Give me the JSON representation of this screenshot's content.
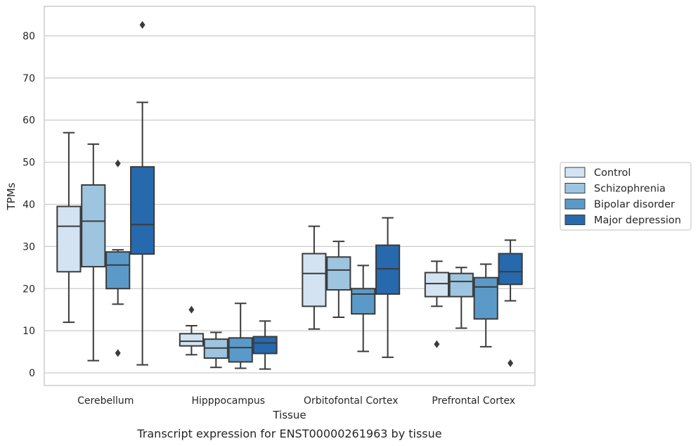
{
  "caption": "Transcript expression for ENST00000261963 by tissue",
  "chart_data": {
    "type": "box",
    "xlabel": "Tissue",
    "ylabel": "TPMs",
    "ylim": [
      -3,
      87
    ],
    "yticks": [
      0,
      10,
      20,
      30,
      40,
      50,
      60,
      70,
      80
    ],
    "grid": "horizontal",
    "legend_position": "right",
    "categories": [
      "Cerebellum",
      "Hipppocampus",
      "Orbitofontal Cortex",
      "Prefrontal Cortex"
    ],
    "series": [
      {
        "name": "Control",
        "color": "#d3e3f2",
        "boxes": [
          {
            "whislo": 12,
            "q1": 24,
            "med": 34.8,
            "q3": 39.5,
            "whishi": 57,
            "fliers": []
          },
          {
            "whislo": 4.3,
            "q1": 6.4,
            "med": 7.5,
            "q3": 9.3,
            "whishi": 11.2,
            "fliers": [
              15
            ]
          },
          {
            "whislo": 10.4,
            "q1": 15.8,
            "med": 23.6,
            "q3": 28.3,
            "whishi": 34.8,
            "fliers": []
          },
          {
            "whislo": 15.8,
            "q1": 18.1,
            "med": 21.2,
            "q3": 23.8,
            "whishi": 26.5,
            "fliers": [
              6.8
            ]
          }
        ]
      },
      {
        "name": "Schizophrenia",
        "color": "#9dc5df",
        "boxes": [
          {
            "whislo": 2.9,
            "q1": 25.2,
            "med": 36,
            "q3": 44.6,
            "whishi": 54.3,
            "fliers": []
          },
          {
            "whislo": 1.3,
            "q1": 3.5,
            "med": 5.9,
            "q3": 8,
            "whishi": 9.6,
            "fliers": []
          },
          {
            "whislo": 13.2,
            "q1": 19.7,
            "med": 24.4,
            "q3": 27.5,
            "whishi": 31.2,
            "fliers": []
          },
          {
            "whislo": 10.6,
            "q1": 18.1,
            "med": 21.7,
            "q3": 23.6,
            "whishi": 25,
            "fliers": []
          }
        ]
      },
      {
        "name": "Bipolar disorder",
        "color": "#5b9ac8",
        "boxes": [
          {
            "whislo": 16.3,
            "q1": 20,
            "med": 25.6,
            "q3": 28.7,
            "whishi": 29.2,
            "fliers": [
              49.7,
              4.7
            ]
          },
          {
            "whislo": 1.1,
            "q1": 2.6,
            "med": 6,
            "q3": 8.3,
            "whishi": 16.5,
            "fliers": []
          },
          {
            "whislo": 5.1,
            "q1": 14,
            "med": 18.7,
            "q3": 20,
            "whishi": 25.5,
            "fliers": []
          },
          {
            "whislo": 6.2,
            "q1": 12.8,
            "med": 20.4,
            "q3": 22.6,
            "whishi": 25.8,
            "fliers": []
          }
        ]
      },
      {
        "name": "Major depression",
        "color": "#2669ad",
        "boxes": [
          {
            "whislo": 1.9,
            "q1": 28.2,
            "med": 35.2,
            "q3": 48.9,
            "whishi": 64.2,
            "fliers": [
              82.6
            ]
          },
          {
            "whislo": 0.9,
            "q1": 4.6,
            "med": 7.1,
            "q3": 8.6,
            "whishi": 12.3,
            "fliers": []
          },
          {
            "whislo": 3.7,
            "q1": 18.7,
            "med": 24.7,
            "q3": 30.3,
            "whishi": 36.8,
            "fliers": []
          },
          {
            "whislo": 17.1,
            "q1": 21,
            "med": 24,
            "q3": 28.3,
            "whishi": 31.5,
            "fliers": [
              2.3
            ]
          }
        ]
      }
    ]
  }
}
